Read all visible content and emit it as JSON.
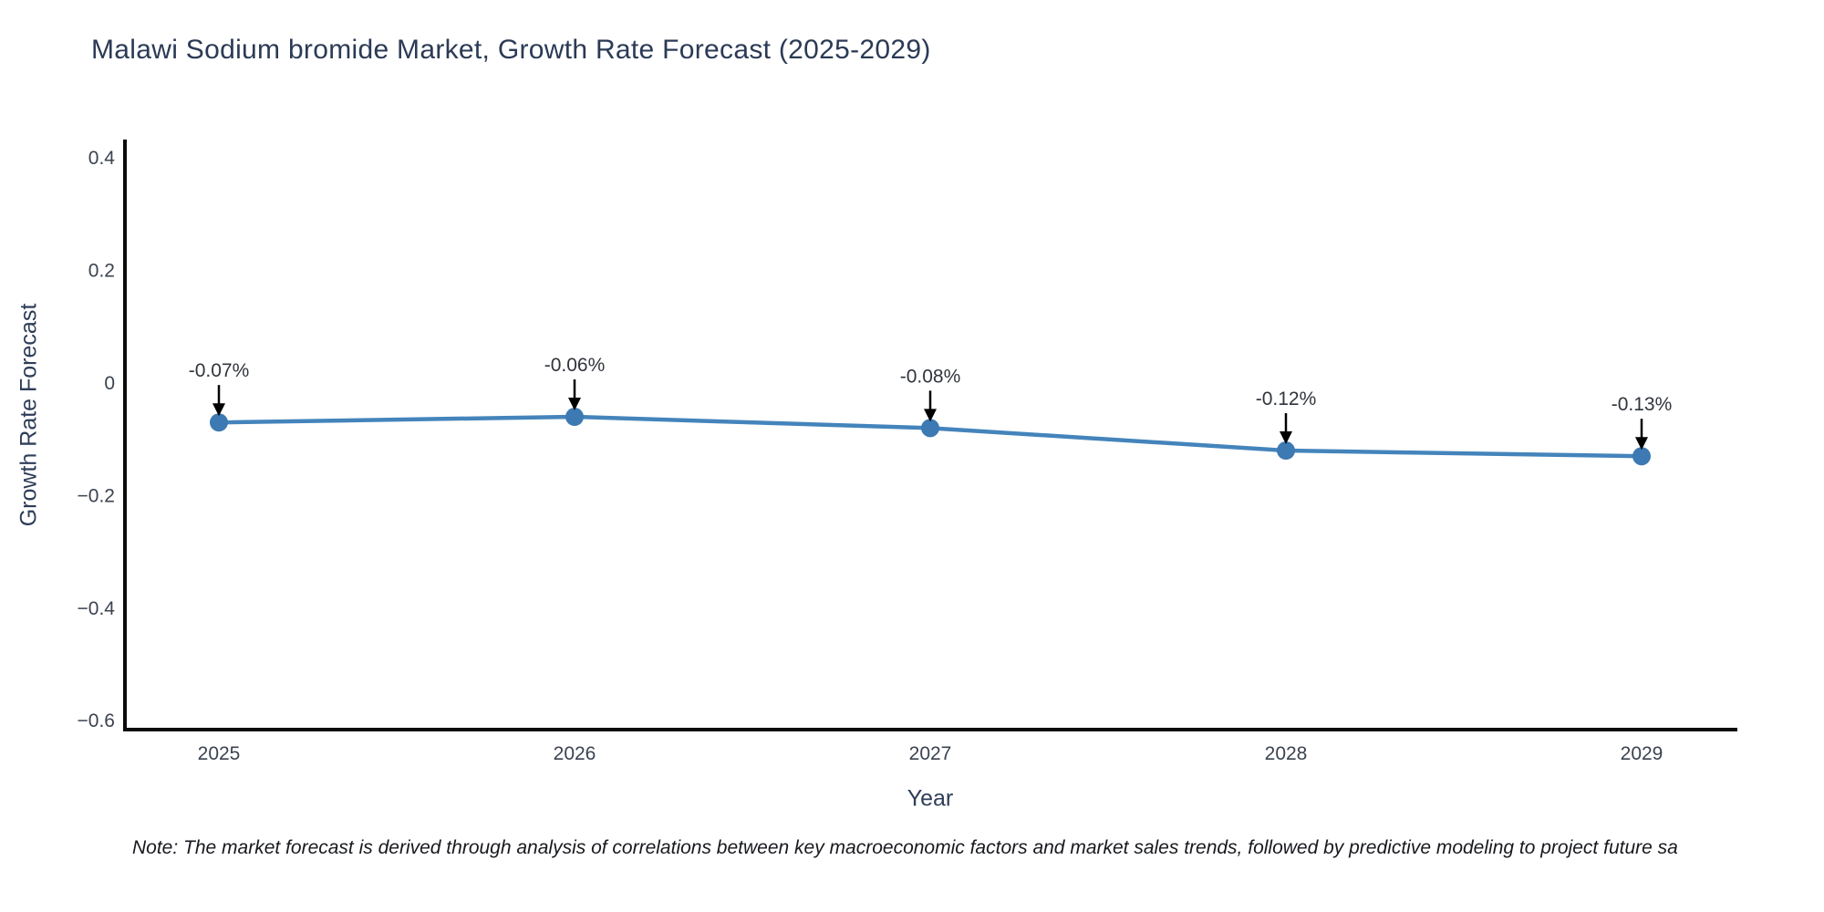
{
  "chart_data": {
    "type": "line",
    "title": "Malawi Sodium bromide Market, Growth Rate Forecast (2025-2029)",
    "xlabel": "Year",
    "ylabel": "Growth Rate Forecast",
    "x": [
      2025,
      2026,
      2027,
      2028,
      2029
    ],
    "series": [
      {
        "name": "Growth Rate Forecast",
        "values": [
          -0.07,
          -0.06,
          -0.08,
          -0.12,
          -0.13
        ]
      }
    ],
    "point_labels": [
      "-0.07%",
      "-0.06%",
      "-0.08%",
      "-0.12%",
      "-0.13%"
    ],
    "yticks": [
      0.4,
      0.2,
      0,
      -0.2,
      -0.4,
      -0.6
    ],
    "ytick_labels": [
      "0.4",
      "0.2",
      "0",
      "−0.2",
      "−0.4",
      "−0.6"
    ],
    "ylim": [
      -0.63,
      0.43
    ],
    "grid": false,
    "legend": "none",
    "line_color": "#4484bb",
    "marker_color": "#3d79b2",
    "axis_color": "#0c0c0c",
    "tick_label_color": "#3b4350",
    "annotation_text_color": "#30353c",
    "annotation_arrow_color": "#000000"
  },
  "note": {
    "text": "Note: The market forecast is derived through analysis of correlations between key macroeconomic factors and market sales trends, followed by predictive modeling to project future sa"
  }
}
